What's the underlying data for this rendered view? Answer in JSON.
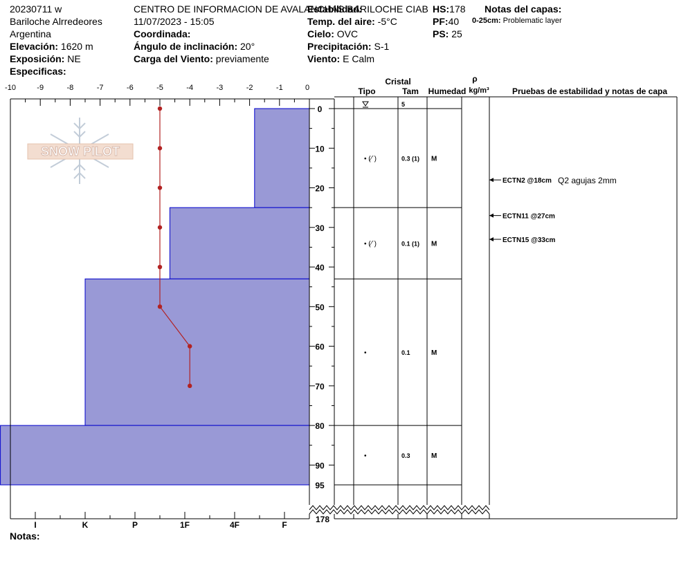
{
  "header": {
    "col1": [
      "20230711 w",
      "Bariloche Alrredeores",
      "Argentina"
    ],
    "elevation_label": "Elevación:",
    "elevation_value": "1620 m",
    "aspect_label": "Exposición:",
    "aspect_value": "NE",
    "specifics_label": "Especificas:",
    "org": "CENTRO DE INFORMACION DE AVALANCHAS BARILOCHE CIAB",
    "datetime": "11/07/2023 - 15:05",
    "coord_label": "Coordinada:",
    "slope_label": "Ángulo de inclinación:",
    "slope_value": "20°",
    "wind_load_label": "Carga del Viento:",
    "wind_load_value": "previamente",
    "stability_label": "Estabilidad:",
    "air_temp_label": "Temp. del aire:",
    "air_temp_value": "-5°C",
    "sky_label": "Cielo:",
    "sky_value": "OVC",
    "precip_label": "Precipitación:",
    "precip_value": "S-1",
    "wind_label": "Viento:",
    "wind_value": "E Calm",
    "hs_label": "HS:",
    "hs_value": "178",
    "pf_label": "PF:",
    "pf_value": "40",
    "ps_label": "PS:",
    "ps_value": "25",
    "layer_notes_title": "Notas del capas:",
    "layer_note_range": "0-25cm:",
    "layer_note_text": "Problematic layer"
  },
  "footer": {
    "notes_label": "Notas:"
  },
  "watermark": {
    "text": "SNOW PILOT"
  },
  "colors": {
    "hardness_fill": "#9999d6",
    "hardness_stroke": "#0000cc",
    "temp": "#b22222"
  },
  "chart_data": {
    "type": "snow_profile",
    "temp_axis": {
      "ticks": [
        "-10",
        "-9",
        "-8",
        "-7",
        "-6",
        "-5",
        "-4",
        "-3",
        "-2",
        "-1",
        "0"
      ],
      "range": [
        -10,
        0
      ]
    },
    "depth_axis": {
      "ticks": [
        0,
        10,
        20,
        30,
        40,
        50,
        60,
        70,
        80,
        90
      ],
      "max_label": "95",
      "hs_label": "178"
    },
    "hardness_axis": {
      "ticks": [
        "I",
        "K",
        "P",
        "1F",
        "4F",
        "F"
      ]
    },
    "temperature_profile": [
      {
        "depth": 0,
        "temp": -5
      },
      {
        "depth": 10,
        "temp": -5
      },
      {
        "depth": 20,
        "temp": -5
      },
      {
        "depth": 30,
        "temp": -5
      },
      {
        "depth": 40,
        "temp": -5
      },
      {
        "depth": 50,
        "temp": -5
      },
      {
        "depth": 60,
        "temp": -4
      },
      {
        "depth": 70,
        "temp": -4
      }
    ],
    "hardness_layers": [
      {
        "top": 0,
        "bottom": 25,
        "hardness": 1.1
      },
      {
        "top": 25,
        "bottom": 43,
        "hardness": 2.8
      },
      {
        "top": 43,
        "bottom": 80,
        "hardness": 4.5
      },
      {
        "top": 80,
        "bottom": 95,
        "hardness": 6.2
      }
    ],
    "table_headers": {
      "crystal": "Cristal",
      "type": "Tipo",
      "size": "Tam",
      "moisture": "Humedad",
      "rho": "ρ",
      "density_unit": "kg/m³",
      "tests": "Pruebas de estabilidad y notas de capa"
    },
    "surface_row": {
      "size": "5"
    },
    "layers": [
      {
        "top": 0,
        "bottom": 25,
        "type": "• (⁄´)",
        "size": "0.3 (1)",
        "moisture": "M"
      },
      {
        "top": 25,
        "bottom": 43,
        "type": "• (⁄´)",
        "size": "0.1 (1)",
        "moisture": "M"
      },
      {
        "top": 43,
        "bottom": 80,
        "type": "•",
        "size": "0.1",
        "moisture": "M"
      },
      {
        "top": 80,
        "bottom": 95,
        "type": "•",
        "size": "0.3",
        "moisture": "M"
      }
    ],
    "tests": [
      {
        "depth": 18,
        "label": "ECTN2 @18cm",
        "note": "Q2 agujas 2mm"
      },
      {
        "depth": 27,
        "label": "ECTN11 @27cm",
        "note": ""
      },
      {
        "depth": 33,
        "label": "ECTN15 @33cm",
        "note": ""
      }
    ]
  }
}
